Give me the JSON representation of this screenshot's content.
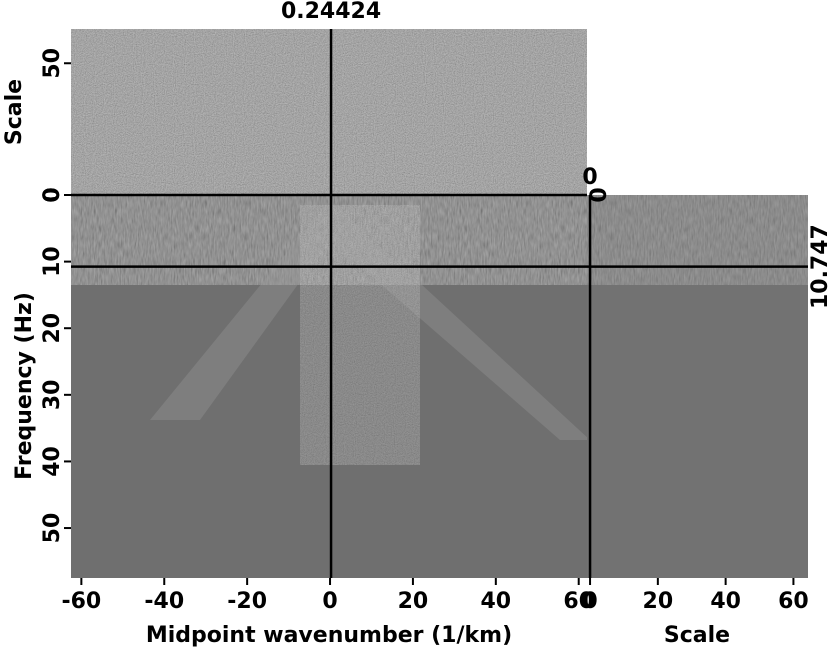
{
  "chart_data": {
    "type": "cube",
    "xlabel": "Midpoint wavenumber (1/km)",
    "ylabel": "Frequency (Hz)",
    "top_ylabel": "Scale",
    "right_xlabel": "Scale",
    "xlim": [
      -62.5,
      62
    ],
    "xticks": [
      -60,
      -40,
      -20,
      0,
      20,
      40,
      60
    ],
    "ylim": [
      0,
      57.5
    ],
    "yticks": [
      0,
      10,
      20,
      30,
      40,
      50
    ],
    "top_ylim": [
      0,
      63
    ],
    "top_yticks": [
      0,
      50
    ],
    "right_xlim": [
      -0.9,
      64.3
    ],
    "right_xticks": [
      0,
      20,
      40,
      60
    ],
    "crosshair": {
      "x": 0.24424,
      "y": 10.747,
      "top_scale": 0,
      "right_scale": 0
    }
  }
}
